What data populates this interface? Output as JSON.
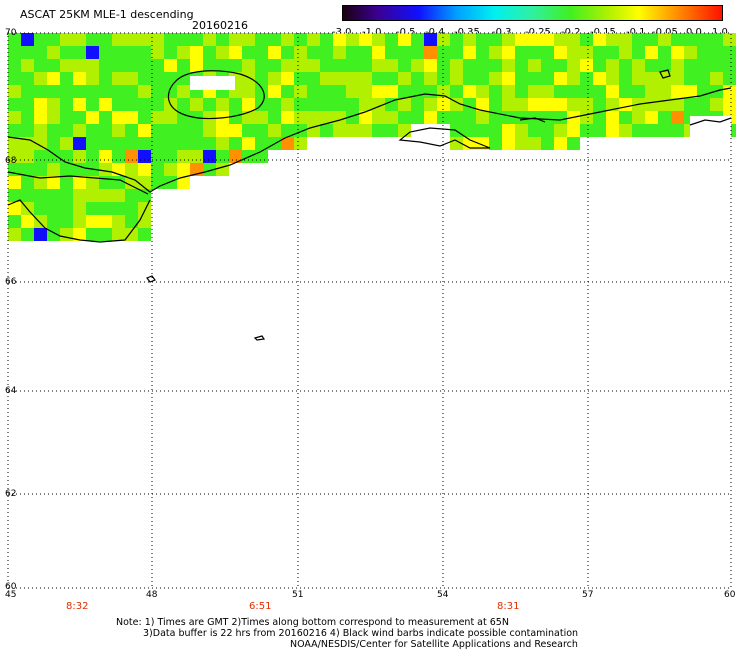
{
  "header": {
    "title": "ASCAT 25KM MLE-1 descending",
    "date": "20160216"
  },
  "colorbar": {
    "labels": [
      "-3.0",
      "-1.0",
      "-0.5",
      "-0.4",
      "-0.35",
      "-0.3",
      "-0.25",
      "-0.2",
      "-0.15",
      "-0.1",
      "-0.05",
      "0.0",
      "1.0"
    ]
  },
  "axes": {
    "lat_labels": [
      "70",
      "68",
      "66",
      "64",
      "62",
      "60"
    ],
    "lon_labels": [
      "45",
      "48",
      "51",
      "54",
      "57",
      "60"
    ]
  },
  "times": [
    "8:32",
    "6:51",
    "8:31"
  ],
  "notes": {
    "line1": "Note: 1) Times are GMT 2)Times along bottom correspond to measurement at 65N",
    "line2": "3)Data buffer is 22 hrs from 20160216 4) Black wind barbs indicate possible contamination",
    "line3": "NOAA/NESDIS/Center for Satellite Applications and Research"
  },
  "colors": {
    "green": "#40f020",
    "yellow_green": "#b0f000",
    "yellow": "#ffff00",
    "orange": "#ff9000",
    "blue": "#1010ff",
    "time_red": "#e03000"
  }
}
